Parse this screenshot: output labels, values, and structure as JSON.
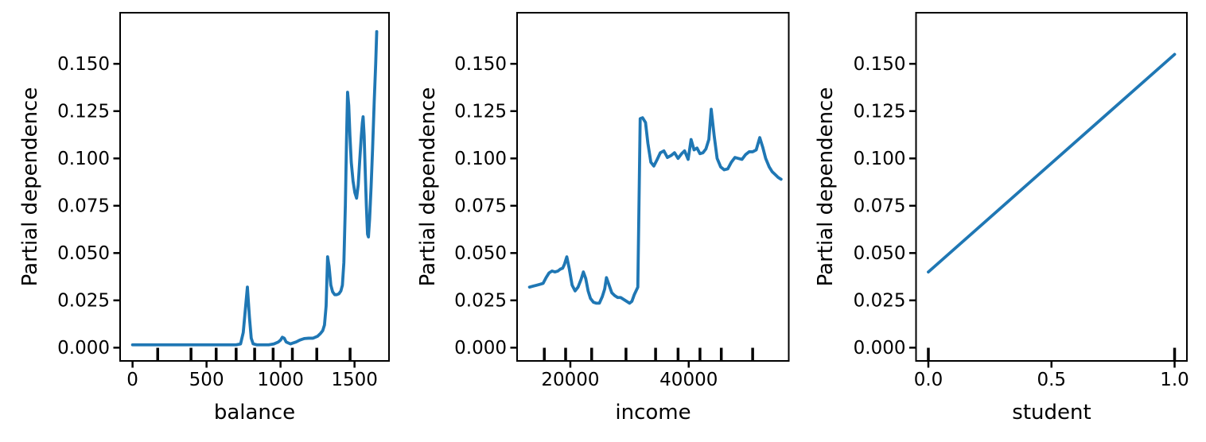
{
  "figure": {
    "background": "#ffffff",
    "line_color": "#1f77b4",
    "axis_color": "#000000",
    "text_color": "#000000"
  },
  "chart_data": [
    {
      "type": "line",
      "title": "",
      "xlabel": "balance",
      "ylabel": "Partial dependence",
      "legend": null,
      "grid": false,
      "xlim": [
        -84,
        1733
      ],
      "ylim": [
        -0.007,
        0.177
      ],
      "xticks": {
        "values": [
          0,
          500,
          1000,
          1500
        ],
        "labels": [
          "0",
          "500",
          "1000",
          "1500"
        ]
      },
      "yticks": {
        "values": [
          0,
          0.025,
          0.05,
          0.075,
          0.1,
          0.125,
          0.15
        ],
        "labels": [
          "0.000",
          "0.025",
          "0.050",
          "0.075",
          "0.100",
          "0.125",
          "0.150"
        ]
      },
      "rug_x": [
        170,
        395,
        565,
        700,
        825,
        950,
        1080,
        1245,
        1470
      ],
      "x": [
        0,
        80,
        160,
        240,
        320,
        400,
        480,
        560,
        640,
        700,
        730,
        748,
        762,
        776,
        790,
        802,
        815,
        840,
        880,
        920,
        955,
        985,
        1000,
        1012,
        1025,
        1038,
        1052,
        1068,
        1085,
        1105,
        1130,
        1160,
        1190,
        1220,
        1250,
        1270,
        1285,
        1297,
        1308,
        1318,
        1328,
        1340,
        1352,
        1366,
        1380,
        1395,
        1408,
        1418,
        1428,
        1438,
        1446,
        1453,
        1461,
        1469,
        1478,
        1490,
        1502,
        1514,
        1525,
        1536,
        1546,
        1553,
        1558,
        1565,
        1572,
        1580,
        1588,
        1594,
        1602,
        1612,
        1622,
        1633,
        1643,
        1650
      ],
      "y": [
        0.0015,
        0.0015,
        0.0015,
        0.0015,
        0.0015,
        0.0015,
        0.0015,
        0.0015,
        0.0015,
        0.0015,
        0.002,
        0.008,
        0.02,
        0.032,
        0.016,
        0.005,
        0.002,
        0.0015,
        0.0015,
        0.0015,
        0.002,
        0.003,
        0.004,
        0.0055,
        0.005,
        0.003,
        0.0025,
        0.002,
        0.0025,
        0.003,
        0.004,
        0.0048,
        0.005,
        0.005,
        0.006,
        0.0075,
        0.009,
        0.012,
        0.022,
        0.048,
        0.043,
        0.033,
        0.0295,
        0.028,
        0.028,
        0.0285,
        0.03,
        0.033,
        0.045,
        0.075,
        0.11,
        0.135,
        0.128,
        0.112,
        0.098,
        0.088,
        0.082,
        0.079,
        0.086,
        0.1,
        0.112,
        0.119,
        0.122,
        0.112,
        0.094,
        0.075,
        0.06,
        0.0585,
        0.068,
        0.085,
        0.105,
        0.13,
        0.15,
        0.167
      ]
    },
    {
      "type": "line",
      "title": "",
      "xlabel": "income",
      "ylabel": "Partial dependence",
      "legend": null,
      "grid": false,
      "xlim": [
        11000,
        56900
      ],
      "ylim": [
        -0.007,
        0.177
      ],
      "xticks": {
        "values": [
          20000,
          40000
        ],
        "labels": [
          "20000",
          "40000"
        ]
      },
      "yticks": {
        "values": [
          0,
          0.025,
          0.05,
          0.075,
          0.1,
          0.125,
          0.15
        ],
        "labels": [
          "0.000",
          "0.025",
          "0.050",
          "0.075",
          "0.100",
          "0.125",
          "0.150"
        ]
      },
      "rug_x": [
        15600,
        19200,
        23600,
        29400,
        34400,
        38200,
        41900,
        45500,
        50800
      ],
      "x": [
        13100,
        13700,
        14300,
        14900,
        15400,
        15900,
        16400,
        16900,
        17400,
        17900,
        18300,
        18700,
        19000,
        19400,
        19800,
        20300,
        20800,
        21300,
        21800,
        22200,
        22600,
        23000,
        23400,
        23900,
        24400,
        24900,
        25400,
        25800,
        26100,
        26500,
        27000,
        27500,
        28000,
        28500,
        29000,
        29500,
        30000,
        30400,
        30800,
        31100,
        31400,
        31800,
        32200,
        32700,
        33100,
        33600,
        34100,
        34600,
        35200,
        35800,
        36400,
        37000,
        37600,
        38200,
        38800,
        39300,
        39900,
        40400,
        40900,
        41400,
        41900,
        42400,
        42900,
        43400,
        43800,
        44300,
        44800,
        45400,
        46000,
        46600,
        47200,
        47800,
        48400,
        49000,
        49600,
        50200,
        50800,
        51400,
        52000,
        52500,
        53000,
        53600,
        54100,
        54600,
        55100,
        55600
      ],
      "y": [
        0.032,
        0.0325,
        0.033,
        0.0335,
        0.034,
        0.037,
        0.0395,
        0.0405,
        0.04,
        0.0405,
        0.0415,
        0.042,
        0.044,
        0.048,
        0.042,
        0.033,
        0.03,
        0.032,
        0.036,
        0.04,
        0.0365,
        0.03,
        0.026,
        0.024,
        0.0235,
        0.0235,
        0.027,
        0.031,
        0.037,
        0.0335,
        0.029,
        0.0275,
        0.0265,
        0.0265,
        0.0255,
        0.0245,
        0.0235,
        0.0245,
        0.028,
        0.03,
        0.032,
        0.121,
        0.1215,
        0.119,
        0.108,
        0.098,
        0.096,
        0.099,
        0.103,
        0.104,
        0.1005,
        0.1015,
        0.103,
        0.1,
        0.1025,
        0.104,
        0.0995,
        0.11,
        0.1045,
        0.1055,
        0.1025,
        0.103,
        0.105,
        0.11,
        0.126,
        0.112,
        0.1,
        0.0955,
        0.094,
        0.0945,
        0.098,
        0.1005,
        0.1,
        0.0995,
        0.102,
        0.1035,
        0.1035,
        0.1045,
        0.111,
        0.106,
        0.1,
        0.0955,
        0.093,
        0.0915,
        0.09,
        0.089
      ]
    },
    {
      "type": "line",
      "title": "",
      "xlabel": "student",
      "ylabel": "Partial dependence",
      "legend": null,
      "grid": false,
      "xlim": [
        -0.05,
        1.05
      ],
      "ylim": [
        -0.007,
        0.177
      ],
      "xticks": {
        "values": [
          0.0,
          0.5,
          1.0
        ],
        "labels": [
          "0.0",
          "0.5",
          "1.0"
        ]
      },
      "yticks": {
        "values": [
          0,
          0.025,
          0.05,
          0.075,
          0.1,
          0.125,
          0.15
        ],
        "labels": [
          "0.000",
          "0.025",
          "0.050",
          "0.075",
          "0.100",
          "0.125",
          "0.150"
        ]
      },
      "rug_x": [
        0,
        1
      ],
      "x": [
        0,
        1
      ],
      "y": [
        0.04,
        0.155
      ]
    }
  ]
}
